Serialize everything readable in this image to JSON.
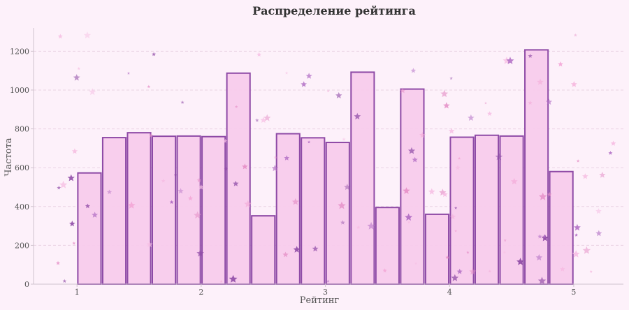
{
  "chart_data": {
    "type": "bar",
    "title": "Распределение рейтинга",
    "xlabel": "Рейтинг",
    "ylabel": "Частота",
    "xlim": [
      0.65,
      5.4
    ],
    "ylim": [
      0,
      1320
    ],
    "xticks": [
      1,
      2,
      3,
      4,
      5
    ],
    "yticks": [
      0,
      200,
      400,
      600,
      800,
      1000,
      1200
    ],
    "grid": true,
    "bin_edges": [
      1.0,
      1.2,
      1.4,
      1.6,
      1.8,
      2.0,
      2.2,
      2.4,
      2.6,
      2.8,
      3.0,
      3.2,
      3.4,
      3.6,
      3.8,
      4.0,
      4.2,
      4.4,
      4.6,
      4.8,
      5.0
    ],
    "values": [
      573,
      755,
      780,
      762,
      763,
      760,
      1087,
      352,
      775,
      754,
      730,
      1092,
      395,
      1005,
      360,
      757,
      767,
      763,
      1207,
      580
    ],
    "colors": {
      "background": "#fdf1fa",
      "bar_fill": "#f8cbec",
      "bar_edge": "#8e4aa6",
      "grid": "#e9d2e3",
      "axis": "#cfc3cd",
      "stars": [
        "#f3a6d6",
        "#e58fc7",
        "#b06cc4",
        "#8e4aa6",
        "#f6bde3"
      ]
    }
  }
}
